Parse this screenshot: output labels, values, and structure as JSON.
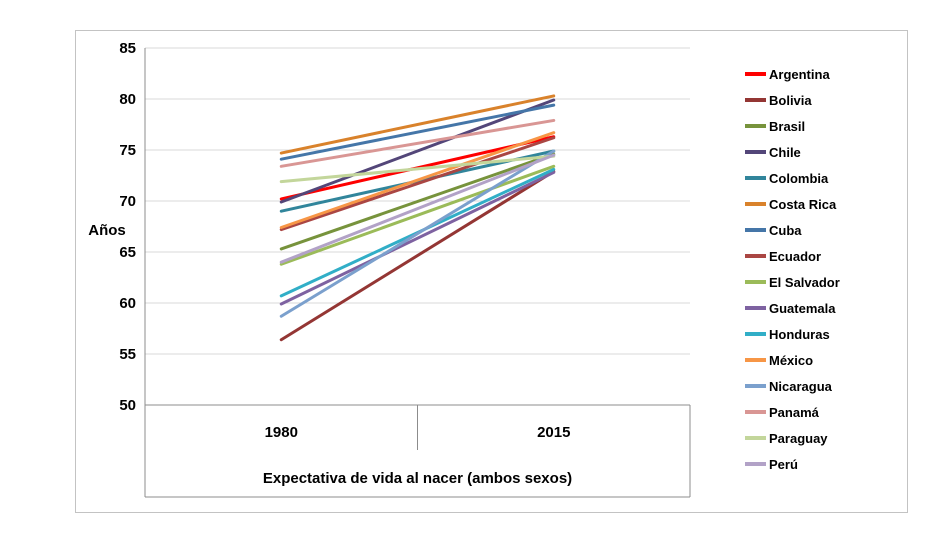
{
  "chart_data": {
    "type": "line",
    "title": "",
    "xlabel": "Expectativa de vida al nacer (ambos sexos)",
    "ylabel": "Años",
    "categories": [
      "1980",
      "2015"
    ],
    "ylim": [
      50,
      85
    ],
    "yticks": [
      85,
      80,
      75,
      70,
      65,
      60,
      55,
      50
    ],
    "grid": true,
    "legend_position": "right",
    "series": [
      {
        "name": "Argentina",
        "color": "#FE0000",
        "values": [
          70.2,
          76.3
        ]
      },
      {
        "name": "Bolivia",
        "color": "#943634",
        "values": [
          56.4,
          72.9
        ]
      },
      {
        "name": "Brasil",
        "color": "#77933C",
        "values": [
          65.3,
          74.6
        ]
      },
      {
        "name": "Chile",
        "color": "#534679",
        "values": [
          69.9,
          79.9
        ]
      },
      {
        "name": "Colombia",
        "color": "#31859B",
        "values": [
          69.0,
          74.9
        ]
      },
      {
        "name": "Costa Rica",
        "color": "#D9822B",
        "values": [
          74.7,
          80.3
        ]
      },
      {
        "name": "Cuba",
        "color": "#4576A8",
        "values": [
          74.1,
          79.4
        ]
      },
      {
        "name": "Ecuador",
        "color": "#AA4643",
        "values": [
          67.2,
          76.2
        ]
      },
      {
        "name": "El Salvador",
        "color": "#9BBB59",
        "values": [
          63.8,
          73.4
        ]
      },
      {
        "name": "Guatemala",
        "color": "#7E62A1",
        "values": [
          59.9,
          72.8
        ]
      },
      {
        "name": "Honduras",
        "color": "#31AEC7",
        "values": [
          60.7,
          73.1
        ]
      },
      {
        "name": "México",
        "color": "#F79646",
        "values": [
          67.4,
          76.7
        ]
      },
      {
        "name": "Nicaragua",
        "color": "#7BA0CD",
        "values": [
          58.7,
          74.9
        ]
      },
      {
        "name": "Panamá",
        "color": "#D99694",
        "values": [
          73.4,
          77.9
        ]
      },
      {
        "name": "Paraguay",
        "color": "#C3D69B",
        "values": [
          71.9,
          74.4
        ]
      },
      {
        "name": "Perú",
        "color": "#B2A2C7",
        "values": [
          64.0,
          74.5
        ]
      }
    ]
  }
}
